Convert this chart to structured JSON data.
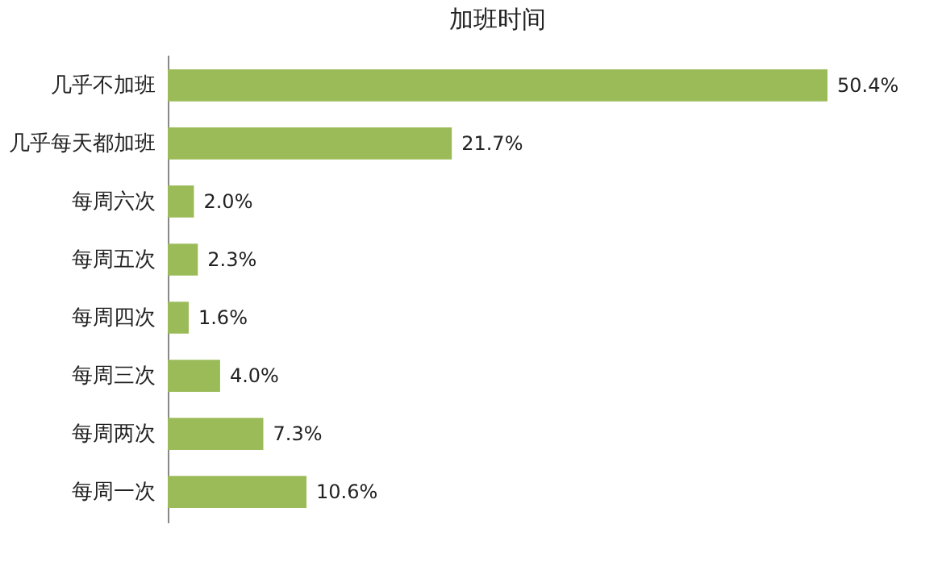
{
  "chart_data": {
    "type": "bar",
    "orientation": "horizontal",
    "title": "加班时间",
    "categories": [
      "几乎不加班",
      "几乎每天都加班",
      "每周六次",
      "每周五次",
      "每周四次",
      "每周三次",
      "每周两次",
      "每周一次"
    ],
    "values": [
      50.4,
      21.7,
      2.0,
      2.3,
      1.6,
      4.0,
      7.3,
      10.6
    ],
    "value_labels": [
      "50.4%",
      "21.7%",
      "2.0%",
      "2.3%",
      "1.6%",
      "4.0%",
      "7.3%",
      "10.6%"
    ],
    "color": "#9bbb59"
  }
}
